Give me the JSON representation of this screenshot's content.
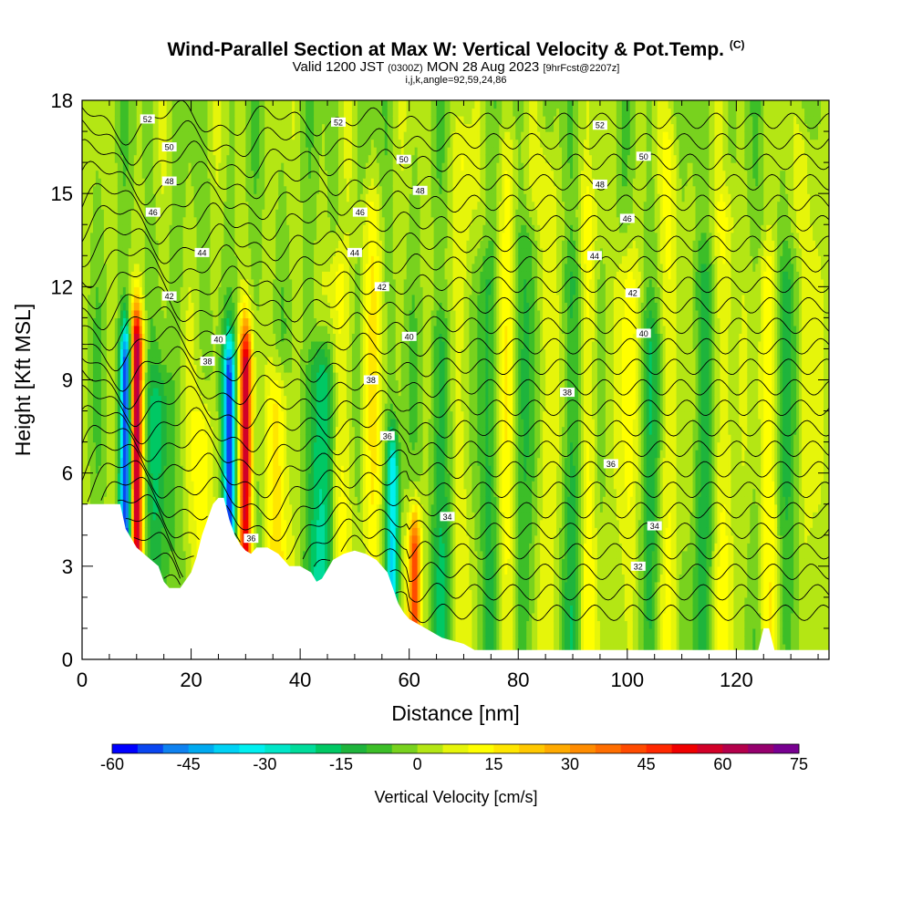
{
  "title": {
    "main": "Wind-Parallel Section at Max W: Vertical Velocity & Pot.Temp.",
    "tag": "(C)",
    "line2_a": "Valid 1200 JST",
    "line2_b": "(0300Z)",
    "line2_c": "MON 28 Aug 2023",
    "line2_d": "[9hrFcst@2207z]",
    "line3": "i,j,k,angle=92,59,24,86"
  },
  "chart_data": {
    "type": "heatmap",
    "title": "Wind-Parallel Section at Max W: Vertical Velocity & Pot.Temp.",
    "xlabel": "Distance [nm]",
    "ylabel": "Height [Kft MSL]",
    "xlim": [
      0,
      137
    ],
    "ylim": [
      0,
      18
    ],
    "x_ticks": [
      0,
      20,
      40,
      60,
      80,
      100,
      120
    ],
    "y_ticks": [
      0,
      3,
      6,
      9,
      12,
      15,
      18
    ],
    "colorbar": {
      "label": "Vertical Velocity [cm/s]",
      "ticks": [
        -60,
        -45,
        -30,
        -15,
        0,
        15,
        30,
        45,
        60,
        75
      ],
      "levels": [
        -60,
        -55,
        -50,
        -45,
        -40,
        -35,
        -30,
        -25,
        -20,
        -15,
        -10,
        -5,
        0,
        5,
        10,
        15,
        20,
        25,
        30,
        35,
        40,
        45,
        50,
        55,
        60,
        65,
        70,
        75
      ],
      "colors": [
        "#0000ff",
        "#0a46f0",
        "#0f82f0",
        "#00aaf0",
        "#00d2f5",
        "#00f0f0",
        "#00e6c8",
        "#00dc9b",
        "#00c864",
        "#1eb43c",
        "#3cbe28",
        "#78d21e",
        "#b4e614",
        "#e6f50a",
        "#ffff00",
        "#ffe600",
        "#ffc800",
        "#ffaa00",
        "#ff8c00",
        "#ff6e00",
        "#ff4b00",
        "#ff2800",
        "#f00000",
        "#d20028",
        "#b4004b",
        "#96006e",
        "#780091"
      ]
    },
    "terrain_profile": [
      [
        0,
        5
      ],
      [
        7,
        5
      ],
      [
        8,
        4.2
      ],
      [
        10,
        3.6
      ],
      [
        12,
        3.3
      ],
      [
        14,
        3
      ],
      [
        15,
        2.5
      ],
      [
        16,
        2.3
      ],
      [
        18,
        2.3
      ],
      [
        20,
        2.8
      ],
      [
        21,
        3.3
      ],
      [
        22,
        4
      ],
      [
        23,
        4.5
      ],
      [
        24,
        5
      ],
      [
        25,
        5.2
      ],
      [
        26,
        5.2
      ],
      [
        27,
        4.5
      ],
      [
        28,
        4
      ],
      [
        29,
        3.7
      ],
      [
        30,
        3.5
      ],
      [
        31,
        3.4
      ],
      [
        32,
        3.6
      ],
      [
        34,
        3.6
      ],
      [
        36,
        3.4
      ],
      [
        38,
        3
      ],
      [
        40,
        3
      ],
      [
        42,
        2.8
      ],
      [
        43,
        2.5
      ],
      [
        44,
        2.6
      ],
      [
        46,
        3.2
      ],
      [
        48,
        3.4
      ],
      [
        50,
        3.5
      ],
      [
        52,
        3.4
      ],
      [
        54,
        3.2
      ],
      [
        56,
        2.8
      ],
      [
        57,
        2.3
      ],
      [
        58,
        1.8
      ],
      [
        59,
        1.5
      ],
      [
        60,
        1.3
      ],
      [
        62,
        1.1
      ],
      [
        64,
        0.9
      ],
      [
        66,
        0.7
      ],
      [
        70,
        0.5
      ],
      [
        72,
        0.3
      ],
      [
        75,
        0.3
      ],
      [
        124,
        0.3
      ],
      [
        125,
        1
      ],
      [
        126,
        1
      ],
      [
        127,
        0.3
      ],
      [
        137,
        0.3
      ]
    ],
    "updraft_columns": [
      {
        "x": 10,
        "top": 10,
        "peak": 60
      },
      {
        "x": 30,
        "top": 9.5,
        "peak": 55
      },
      {
        "x": 61,
        "top": 3.5,
        "peak": 45
      },
      {
        "x": 36,
        "top": 8,
        "peak": 20
      },
      {
        "x": 22,
        "top": 7,
        "peak": 15
      },
      {
        "x": 47,
        "top": 12,
        "peak": 15
      },
      {
        "x": 53,
        "top": 14,
        "peak": 12
      },
      {
        "x": 70,
        "top": 16,
        "peak": 10
      },
      {
        "x": 78,
        "top": 16,
        "peak": 10
      },
      {
        "x": 85,
        "top": 15,
        "peak": 12
      },
      {
        "x": 93,
        "top": 14,
        "peak": 12
      },
      {
        "x": 100,
        "top": 12,
        "peak": 12
      },
      {
        "x": 108,
        "top": 16,
        "peak": 10
      },
      {
        "x": 118,
        "top": 14,
        "peak": 12
      },
      {
        "x": 126,
        "top": 12,
        "peak": 12
      },
      {
        "x": 133,
        "top": 16,
        "peak": 10
      }
    ],
    "downdraft_columns": [
      {
        "x": 8,
        "top": 9.5,
        "peak": -55
      },
      {
        "x": 27,
        "top": 9,
        "peak": -50
      },
      {
        "x": 57,
        "top": 6,
        "peak": -35
      },
      {
        "x": 44,
        "top": 9,
        "peak": -25
      },
      {
        "x": 14,
        "top": 8,
        "peak": -15
      },
      {
        "x": 66,
        "top": 10,
        "peak": -12
      },
      {
        "x": 74,
        "top": 12,
        "peak": -10
      },
      {
        "x": 82,
        "top": 13,
        "peak": -10
      },
      {
        "x": 90,
        "top": 12,
        "peak": -10
      },
      {
        "x": 104,
        "top": 10,
        "peak": -10
      },
      {
        "x": 114,
        "top": 12,
        "peak": -10
      },
      {
        "x": 130,
        "top": 12,
        "peak": -10
      }
    ],
    "theta_contour_labels": [
      {
        "text": "52",
        "x": 12,
        "y": 17.4
      },
      {
        "text": "52",
        "x": 47,
        "y": 17.3
      },
      {
        "text": "52",
        "x": 95,
        "y": 17.2
      },
      {
        "text": "50",
        "x": 16,
        "y": 16.5
      },
      {
        "text": "50",
        "x": 59,
        "y": 16.1
      },
      {
        "text": "50",
        "x": 103,
        "y": 16.2
      },
      {
        "text": "48",
        "x": 16,
        "y": 15.4
      },
      {
        "text": "48",
        "x": 62,
        "y": 15.1
      },
      {
        "text": "48",
        "x": 95,
        "y": 15.3
      },
      {
        "text": "46",
        "x": 13,
        "y": 14.4
      },
      {
        "text": "46",
        "x": 51,
        "y": 14.4
      },
      {
        "text": "46",
        "x": 100,
        "y": 14.2
      },
      {
        "text": "44",
        "x": 22,
        "y": 13.1
      },
      {
        "text": "44",
        "x": 50,
        "y": 13.1
      },
      {
        "text": "44",
        "x": 94,
        "y": 13
      },
      {
        "text": "42",
        "x": 16,
        "y": 11.7
      },
      {
        "text": "42",
        "x": 55,
        "y": 12
      },
      {
        "text": "42",
        "x": 101,
        "y": 11.8
      },
      {
        "text": "40",
        "x": 25,
        "y": 10.3
      },
      {
        "text": "40",
        "x": 60,
        "y": 10.4
      },
      {
        "text": "40",
        "x": 103,
        "y": 10.5
      },
      {
        "text": "38",
        "x": 23,
        "y": 9.6
      },
      {
        "text": "38",
        "x": 53,
        "y": 9
      },
      {
        "text": "38",
        "x": 89,
        "y": 8.6
      },
      {
        "text": "36",
        "x": 56,
        "y": 7.2
      },
      {
        "text": "36",
        "x": 97,
        "y": 6.3
      },
      {
        "text": "36",
        "x": 31,
        "y": 3.9
      },
      {
        "text": "34",
        "x": 67,
        "y": 4.6
      },
      {
        "text": "34",
        "x": 105,
        "y": 4.3
      },
      {
        "text": "32",
        "x": 102,
        "y": 3.0
      }
    ]
  }
}
